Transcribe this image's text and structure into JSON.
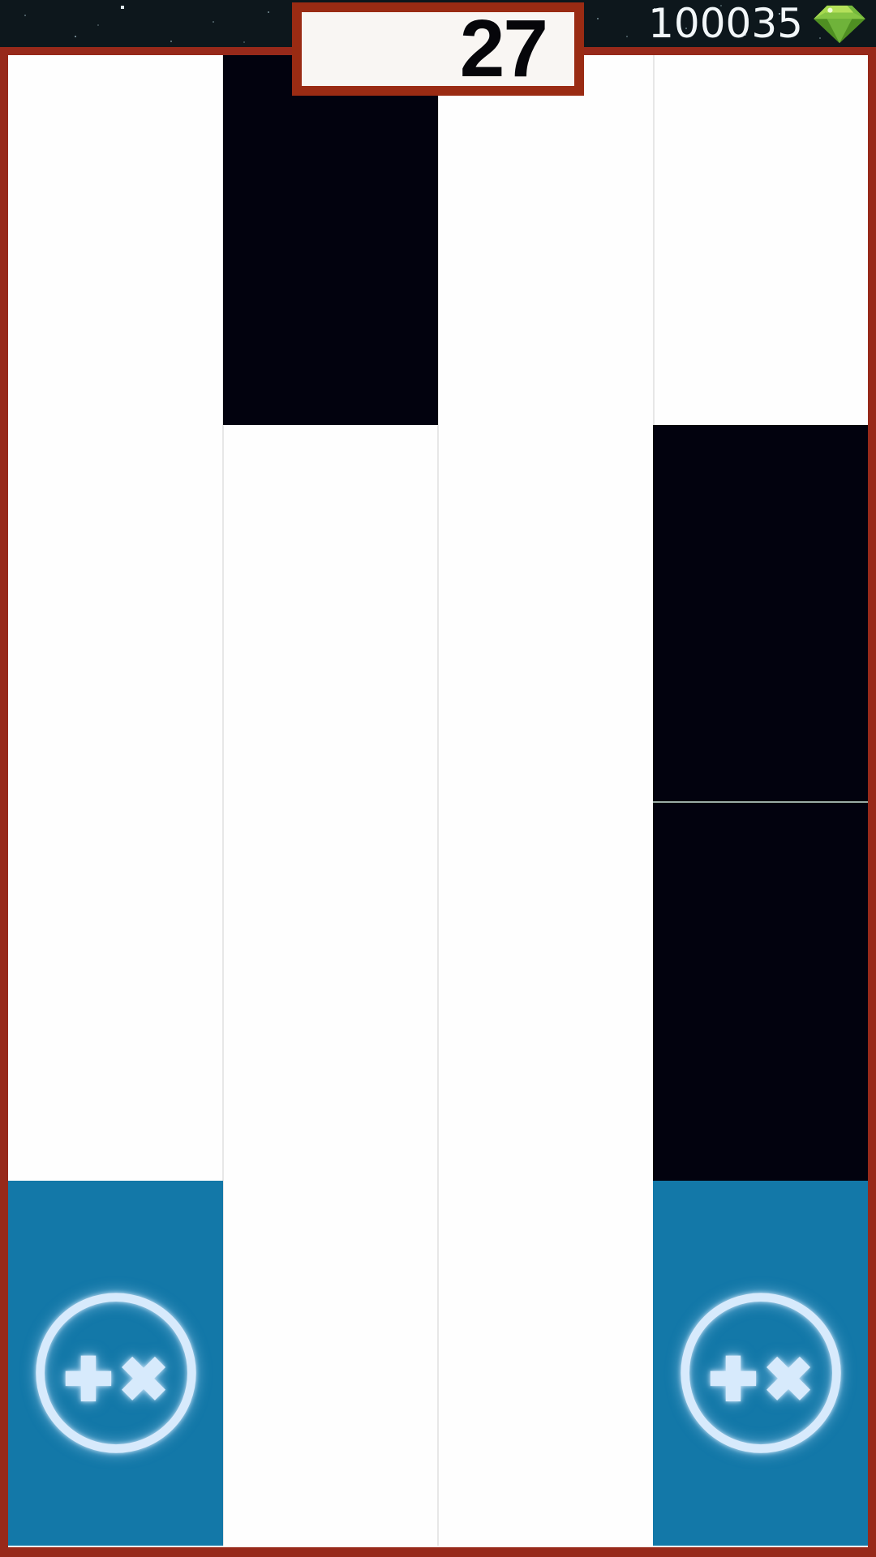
{
  "topbar": {
    "gems_count": "100035",
    "gem_icon": "gem-icon"
  },
  "score_box": {
    "score": "27"
  },
  "game": {
    "columns": 4,
    "rows": 4,
    "tiles": [
      {
        "col": 1,
        "row": 0,
        "type": "black"
      },
      {
        "col": 3,
        "row": 1,
        "type": "black"
      },
      {
        "col": 3,
        "row": 2,
        "type": "black",
        "seam_top": true
      },
      {
        "col": 0,
        "row": 3,
        "type": "powerup",
        "symbols": "+×"
      },
      {
        "col": 3,
        "row": 3,
        "type": "powerup",
        "symbols": "+×"
      }
    ]
  },
  "colors": {
    "border_red": "#97291A",
    "score_border_red": "#9A2B13",
    "score_bg": "#F9F6F3",
    "topbar_bg": "#0D171C",
    "tile_black": "#02020E",
    "tile_blue": "#1378A8",
    "icon_glow": "#D7EAFC",
    "gem_green": "#7DC242",
    "seam": "#9AACA4",
    "column_line": "#E7E7E7"
  }
}
